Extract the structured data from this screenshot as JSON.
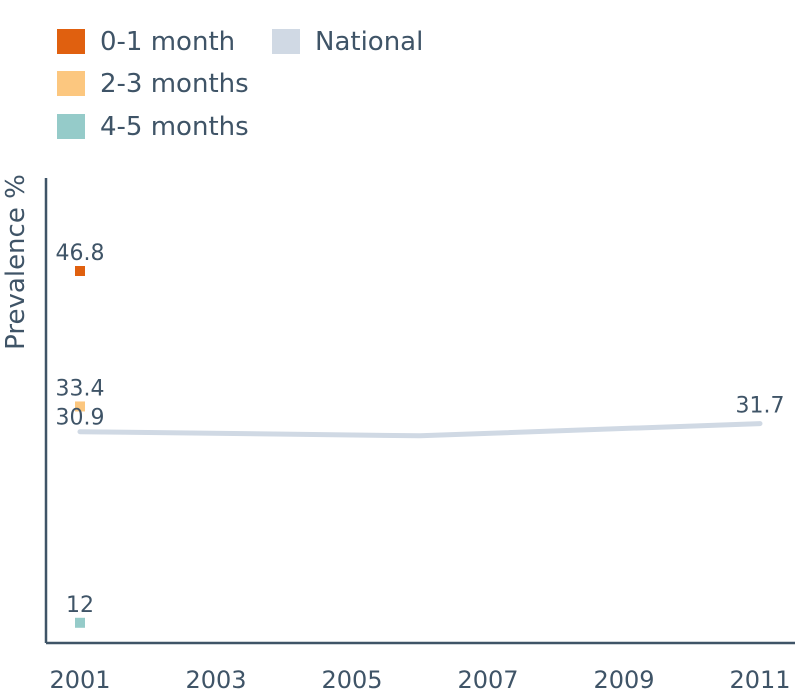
{
  "chart_data": {
    "type": "line",
    "title": "",
    "xlabel": "",
    "ylabel": "Prevalence %",
    "x_ticks": [
      "2001",
      "2003",
      "2005",
      "2007",
      "2009",
      "2011"
    ],
    "xlim": [
      2001,
      2011
    ],
    "ylim": [
      10,
      56
    ],
    "grid": false,
    "legend_position": "top-left",
    "legend": [
      {
        "name": "0-1 month",
        "color": "#e0600f"
      },
      {
        "name": "National",
        "color": "#d0d9e4"
      },
      {
        "name": "2-3 months",
        "color": "#fcc77f"
      },
      {
        "name": "4-5 months",
        "color": "#95cbc9"
      }
    ],
    "series": [
      {
        "name": "0-1 month",
        "type": "point",
        "color": "#e0600f",
        "points": [
          {
            "x": 2001,
            "y": 46.8,
            "label": "46.8"
          }
        ]
      },
      {
        "name": "2-3 months",
        "type": "point",
        "color": "#fcc77f",
        "points": [
          {
            "x": 2001,
            "y": 33.4,
            "label": "33.4"
          }
        ]
      },
      {
        "name": "4-5 months",
        "type": "point",
        "color": "#95cbc9",
        "points": [
          {
            "x": 2001,
            "y": 12,
            "label": "12"
          }
        ]
      },
      {
        "name": "National",
        "type": "line",
        "color": "#d0d9e4",
        "points": [
          {
            "x": 2001,
            "y": 30.9,
            "label": "30.9"
          },
          {
            "x": 2006,
            "y": 30.5,
            "label": ""
          },
          {
            "x": 2011,
            "y": 31.7,
            "label": "31.7"
          }
        ]
      }
    ]
  }
}
